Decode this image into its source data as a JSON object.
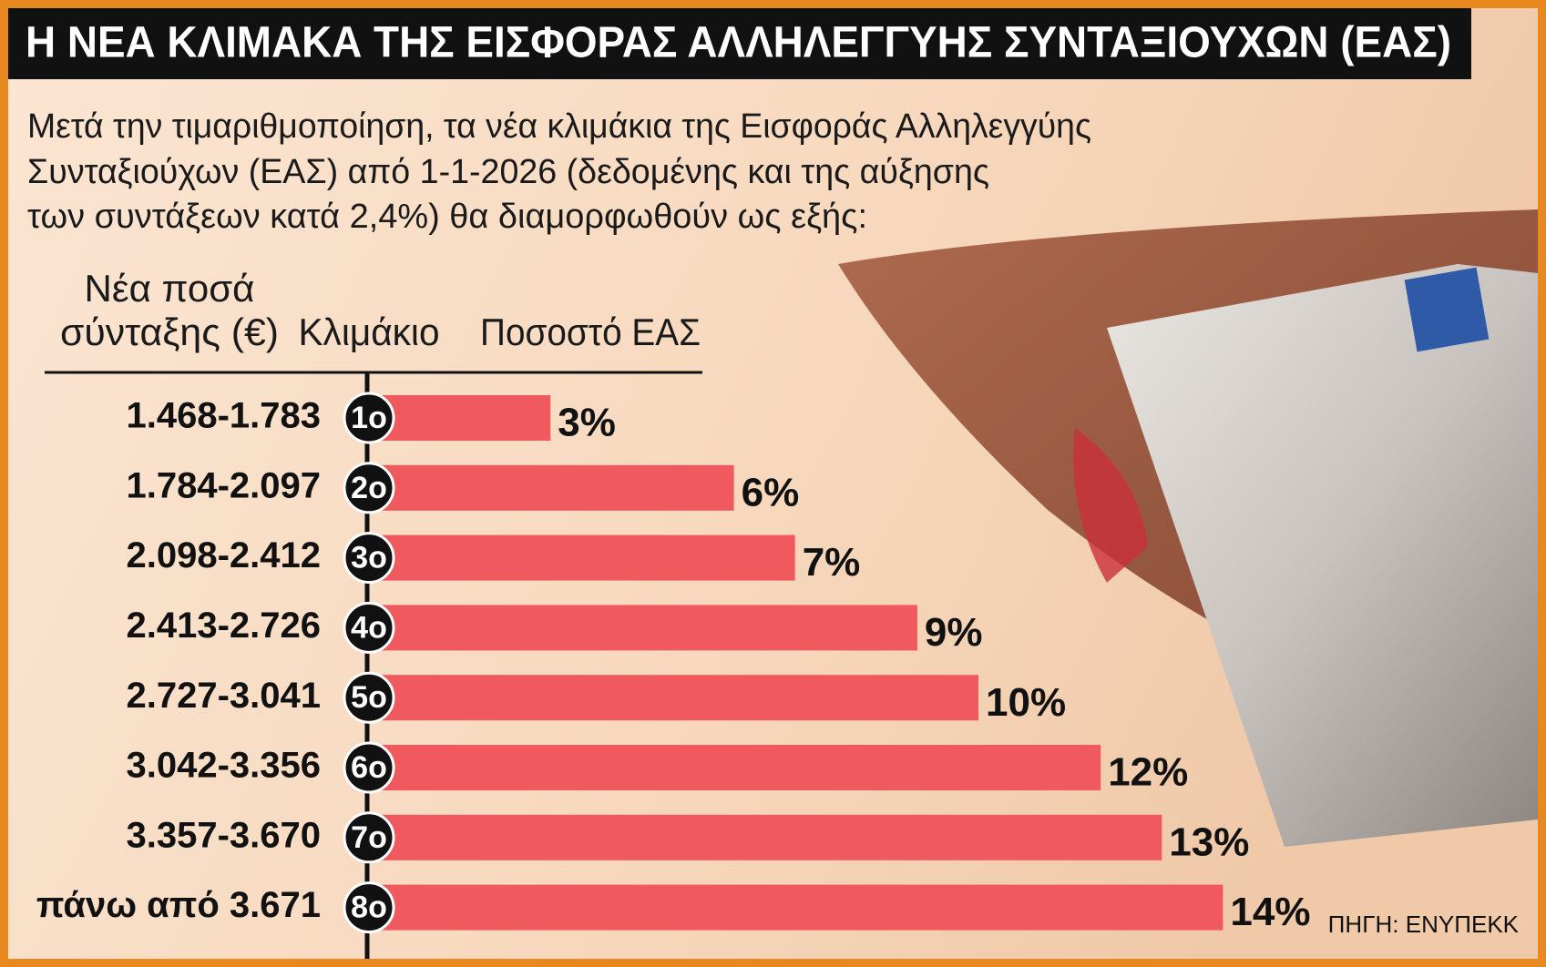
{
  "chart_data": {
    "type": "bar",
    "title": "Η ΝΕΑ ΚΛΙΜΑΚΑ ΤΗΣ ΕΙΣΦΟΡΑΣ ΑΛΛΗΛΕΓΓΥΗΣ ΣΥΝΤΑΞΙΟΥΧΩΝ (ΕΑΣ)",
    "subtitle": [
      "Μετά την τιμαριθμοποίηση, τα νέα κλιμάκια της Εισφοράς Αλληλεγγύης",
      "Συνταξιούχων (ΕΑΣ) από 1-1-2026 (δεδομένης και της αύξησης",
      "των συντάξεων κατά 2,4%) θα διαμορφωθούν ως εξής:"
    ],
    "column_headers": {
      "amounts": [
        "Νέα ποσά",
        "σύνταξης (€)"
      ],
      "step": "Κλιμάκιο",
      "rate": "Ποσοστό ΕΑΣ"
    },
    "categories": [
      "1.468-1.783",
      "1.784-2.097",
      "2.098-2.412",
      "2.413-2.726",
      "2.727-3.041",
      "3.042-3.356",
      "3.357-3.670",
      "πάνω από 3.671"
    ],
    "steps": [
      "1ο",
      "2ο",
      "3ο",
      "4ο",
      "5ο",
      "6ο",
      "7ο",
      "8ο"
    ],
    "values": [
      3,
      6,
      7,
      9,
      10,
      12,
      13,
      14
    ],
    "value_labels": [
      "3%",
      "6%",
      "7%",
      "9%",
      "10%",
      "12%",
      "13%",
      "14%"
    ],
    "color": "#f05a5e",
    "source": "ΠΗΓΗ: ΕΝΥΠΕΚΚ"
  }
}
